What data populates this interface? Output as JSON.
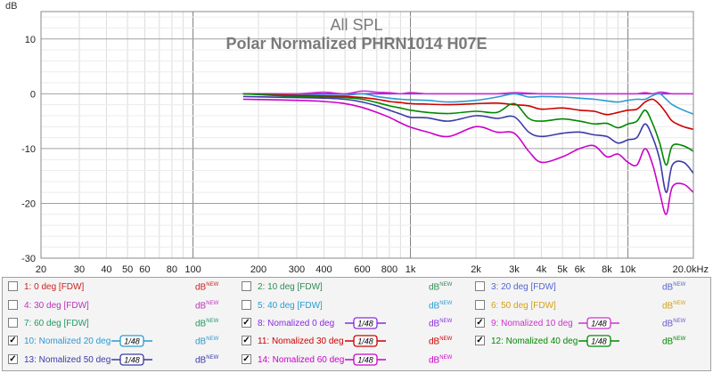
{
  "chart_data": {
    "type": "line",
    "title": "All SPL",
    "subtitle": "Polar Normalized PHRN1014  H07E",
    "ylabel": "dB",
    "xlabel": "",
    "xscale": "log",
    "xlim": [
      20,
      20000
    ],
    "ylim": [
      -30,
      15
    ],
    "grid": true,
    "x_tick_labels": [
      "20",
      "30",
      "40",
      "50",
      "60",
      "80",
      "100",
      "200",
      "300",
      "400",
      "600",
      "800",
      "1k",
      "2k",
      "3k",
      "4k",
      "5k",
      "6k",
      "8k",
      "10k",
      "20.0kHz"
    ],
    "y_tick_labels": [
      "10",
      "0",
      "-10",
      "-20",
      "-30"
    ],
    "x": [
      170,
      300,
      400,
      500,
      600,
      700,
      800,
      900,
      1000,
      1200,
      1500,
      2000,
      2500,
      3000,
      3500,
      4000,
      5000,
      6000,
      7000,
      8000,
      9000,
      10000,
      11000,
      12000,
      13000,
      14000,
      15000,
      16000,
      18000,
      20000
    ],
    "series": [
      {
        "name": "8: Nomalized 0 deg",
        "color": "#8a2be2",
        "values": [
          0,
          0,
          0,
          0,
          0,
          0,
          0,
          0,
          0,
          0,
          0,
          0,
          0,
          0,
          0,
          0,
          0,
          0,
          0,
          0,
          0,
          0,
          0,
          0,
          0,
          0,
          0,
          0,
          0,
          0
        ]
      },
      {
        "name": "9: Nomalized 10 deg",
        "color": "#cc33cc",
        "values": [
          0,
          0,
          0.3,
          0,
          0.5,
          0.3,
          0.2,
          0,
          0.2,
          0,
          0,
          0,
          0,
          0.2,
          0.1,
          0,
          0,
          0,
          0,
          0,
          0,
          0,
          0,
          0.2,
          0,
          0.3,
          0.2,
          0,
          0,
          0
        ]
      },
      {
        "name": "10: Nomalized 20 deg",
        "color": "#2a9bd0",
        "values": [
          0,
          -0.2,
          -0.3,
          -0.3,
          0,
          -0.5,
          -0.8,
          -1,
          -1.1,
          -1.2,
          -1.5,
          -1.2,
          -0.6,
          0,
          -0.6,
          -0.5,
          -0.6,
          -0.8,
          -1,
          -1.3,
          -1.5,
          -1.2,
          -1,
          -1,
          -0.3,
          0,
          -1,
          -2,
          -3,
          -3.7
        ]
      },
      {
        "name": "11: Nomalized 30 deg",
        "color": "#cc0000",
        "values": [
          0,
          -0.3,
          -0.4,
          -0.5,
          -0.7,
          -1,
          -1.4,
          -1.6,
          -1.8,
          -1.9,
          -2,
          -1.8,
          -1.7,
          -2,
          -2.2,
          -2.8,
          -2.6,
          -3,
          -3.2,
          -3.8,
          -3.4,
          -3,
          -2.8,
          -1.5,
          -1,
          -2,
          -3.5,
          -5,
          -6,
          -6.5
        ]
      },
      {
        "name": "12: Nomalized 40 deg",
        "color": "#008800",
        "values": [
          0,
          -0.5,
          -0.6,
          -0.7,
          -1,
          -1.6,
          -2.2,
          -2.6,
          -3,
          -3.4,
          -3.6,
          -3.2,
          -3.4,
          -1.8,
          -4.5,
          -5,
          -4.6,
          -5,
          -5.5,
          -5.4,
          -6.2,
          -5.5,
          -5,
          -3,
          -5.5,
          -9,
          -13,
          -9.5,
          -9.5,
          -10.5
        ]
      },
      {
        "name": "13: Nomalized 50 deg",
        "color": "#3a3aa8",
        "values": [
          -0.5,
          -0.7,
          -0.8,
          -1,
          -1.5,
          -2.2,
          -3,
          -3.7,
          -4.3,
          -4.4,
          -5,
          -4,
          -4.5,
          -4.2,
          -7,
          -7.8,
          -7.2,
          -7,
          -7.5,
          -7.8,
          -9,
          -8.4,
          -8,
          -5.5,
          -8,
          -12,
          -18,
          -13,
          -12.5,
          -14.5
        ]
      },
      {
        "name": "14: Nomalized 60 deg",
        "color": "#cc00cc",
        "values": [
          -1,
          -1.2,
          -1.4,
          -1.8,
          -2.5,
          -3.4,
          -4.3,
          -5.3,
          -6.1,
          -7,
          -7.8,
          -6,
          -7,
          -7.2,
          -10.5,
          -12.5,
          -11.5,
          -10,
          -9.5,
          -11.5,
          -11,
          -12.5,
          -13,
          -10,
          -13,
          -18,
          -22,
          -17,
          -16.5,
          -18
        ]
      }
    ]
  },
  "legend": {
    "items": [
      {
        "label": "1: 0 deg [FDW]",
        "unit": "dB",
        "unit_sup": "NEW",
        "checked": false,
        "color": "#cc2222",
        "unit_color": "#cc2222",
        "smoothing": ""
      },
      {
        "label": "2: 10 deg [FDW]",
        "unit": "dB",
        "unit_sup": "NEW",
        "checked": false,
        "color": "#2e8b57",
        "unit_color": "#2e8b57",
        "smoothing": ""
      },
      {
        "label": "3: 20 deg [FDW]",
        "unit": "dB",
        "unit_sup": "NEW",
        "checked": false,
        "color": "#5566cc",
        "unit_color": "#5566cc",
        "smoothing": ""
      },
      {
        "label": "4: 30 deg [FDW]",
        "unit": "dB",
        "unit_sup": "NEW",
        "checked": false,
        "color": "#bb33bb",
        "unit_color": "#bb33bb",
        "smoothing": ""
      },
      {
        "label": "5: 40 deg [FDW]",
        "unit": "dB",
        "unit_sup": "NEW",
        "checked": false,
        "color": "#2a9bd0",
        "unit_color": "#2a9bd0",
        "smoothing": ""
      },
      {
        "label": "6: 50 deg [FDW]",
        "unit": "dB",
        "unit_sup": "NEW",
        "checked": false,
        "color": "#d4a017",
        "unit_color": "#d4a017",
        "smoothing": ""
      },
      {
        "label": "7: 60 deg [FDW]",
        "unit": "dB",
        "unit_sup": "NEW",
        "checked": false,
        "color": "#229966",
        "unit_color": "#229966",
        "smoothing": ""
      },
      {
        "label": "8: Nomalized 0 deg",
        "unit": "dB",
        "unit_sup": "NEW",
        "checked": true,
        "color": "#8a2be2",
        "unit_color": "#8a2be2",
        "smoothing": "1/48"
      },
      {
        "label": "9: Nomalized 10 deg",
        "unit": "dB",
        "unit_sup": "NEW",
        "checked": true,
        "color": "#cc33cc",
        "unit_color": "#6a5acd",
        "smoothing": "1/48"
      },
      {
        "label": "10: Nomalized 20 deg",
        "unit": "dB",
        "unit_sup": "NEW",
        "checked": true,
        "color": "#2a9bd0",
        "unit_color": "#2a9bd0",
        "smoothing": "1/48"
      },
      {
        "label": "11: Nomalized 30 deg",
        "unit": "dB",
        "unit_sup": "NEW",
        "checked": true,
        "color": "#cc0000",
        "unit_color": "#cc0000",
        "smoothing": "1/48"
      },
      {
        "label": "12: Nomalized 40 deg",
        "unit": "dB",
        "unit_sup": "NEW",
        "checked": true,
        "color": "#008800",
        "unit_color": "#008800",
        "smoothing": "1/48"
      },
      {
        "label": "13: Nomalized 50 deg",
        "unit": "dB",
        "unit_sup": "NEW",
        "checked": true,
        "color": "#3a3aa8",
        "unit_color": "#3a3aa8",
        "smoothing": "1/48"
      },
      {
        "label": "14: Nomalized 60 deg",
        "unit": "dB",
        "unit_sup": "NEW",
        "checked": true,
        "color": "#cc00cc",
        "unit_color": "#cc00cc",
        "smoothing": "1/48"
      }
    ]
  }
}
